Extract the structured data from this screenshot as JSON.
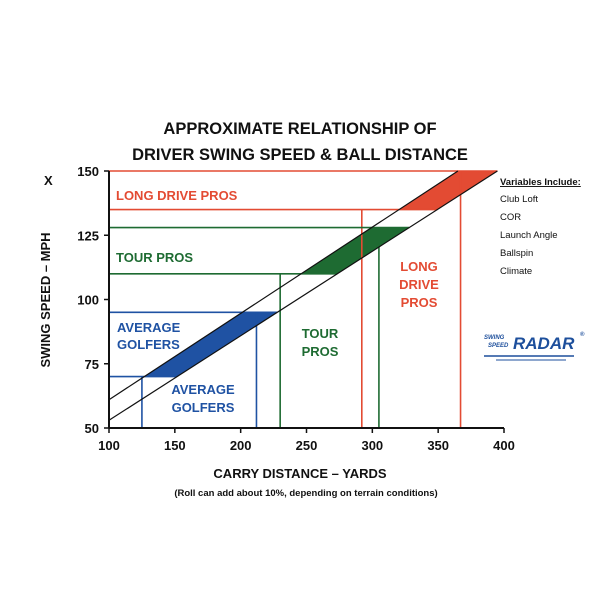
{
  "chart_data": {
    "type": "line",
    "title": [
      "APPROXIMATE RELATIONSHIP OF",
      "DRIVER SWING SPEED & BALL DISTANCE"
    ],
    "xlabel": "CARRY DISTANCE – YARDS",
    "ylabel": "SWING SPEED – MPH",
    "note": "(Roll can add about 10%, depending on terrain conditions)",
    "x_axis_marker": "X",
    "xlim": [
      100,
      400
    ],
    "ylim": [
      50,
      150
    ],
    "x_ticks": [
      "100",
      "150",
      "200",
      "250",
      "300",
      "350",
      "400"
    ],
    "y_ticks": [
      "50",
      "75",
      "100",
      "125",
      "150"
    ],
    "x_tick_values": [
      100,
      150,
      200,
      250,
      300,
      350,
      400
    ],
    "y_tick_values": [
      50,
      75,
      100,
      125,
      150
    ],
    "boundary_lines": [
      {
        "points": [
          [
            100,
            61
          ],
          [
            365,
            150
          ]
        ]
      },
      {
        "points": [
          [
            100,
            53
          ],
          [
            395,
            150
          ]
        ]
      }
    ],
    "groups": [
      {
        "name": "LONG DRIVE PROS",
        "color": "#e34b33",
        "speed_range": [
          135,
          150
        ],
        "carry_range": [
          292,
          367
        ],
        "label_lines": [
          "LONG DRIVE PROS"
        ],
        "carry_label_lines": [
          "LONG",
          "DRIVE",
          "PROS"
        ]
      },
      {
        "name": "TOUR PROS",
        "color": "#1e6b32",
        "speed_range": [
          110,
          128
        ],
        "carry_range": [
          230,
          305
        ],
        "label_lines": [
          "TOUR PROS"
        ],
        "carry_label_lines": [
          "TOUR",
          "PROS"
        ]
      },
      {
        "name": "AVERAGE GOLFERS",
        "color": "#1f52a3",
        "speed_range": [
          70,
          95
        ],
        "carry_range": [
          125,
          212
        ],
        "label_lines": [
          "AVERAGE",
          "GOLFERS"
        ],
        "carry_label_lines": [
          "AVERAGE",
          "GOLFERS"
        ]
      }
    ],
    "grid": false
  },
  "variables": {
    "title": "Variables Include:",
    "items": [
      "Club Loft",
      "COR",
      "Launch Angle",
      "Ballspin",
      "Climate"
    ]
  },
  "logo": {
    "small_top": "SWING",
    "small_bottom": "SPEED",
    "big": "RADAR",
    "mark": "®",
    "color": "#1d4f9c"
  }
}
